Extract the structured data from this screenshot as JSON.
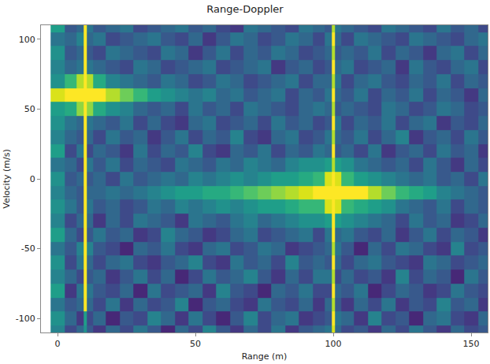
{
  "chart_data": {
    "type": "heatmap",
    "title": "Range-Doppler",
    "xlabel": "Range (m)",
    "ylabel": "Velocity (m/s)",
    "color": "Viridis",
    "grid": false,
    "xlim": [
      -6,
      156
    ],
    "ylim": [
      -110,
      110
    ],
    "xticks": [
      0,
      50,
      100,
      150
    ],
    "yticks": [
      -100,
      -50,
      0,
      50,
      100
    ],
    "zlim": [
      0,
      0.9
    ],
    "x": [
      0,
      5,
      9,
      10,
      11,
      15,
      20,
      25,
      30,
      35,
      40,
      45,
      50,
      55,
      60,
      65,
      70,
      75,
      80,
      85,
      90,
      95,
      99,
      100,
      101,
      105,
      110,
      115,
      120,
      125,
      130,
      135,
      140,
      145,
      150,
      155
    ],
    "y": [
      -110,
      -100,
      -90,
      -80,
      -70,
      -60,
      -50,
      -40,
      -30,
      -20,
      -10,
      0,
      10,
      20,
      30,
      40,
      50,
      60,
      70,
      80,
      90,
      100,
      110
    ],
    "z": [
      [
        0.4,
        0.2,
        0.3,
        0.45,
        0.25,
        0.15,
        0.3,
        0.2,
        0.35,
        0.25,
        0.1,
        0.3,
        0.2,
        0.4,
        0.25,
        0.15,
        0.3,
        0.2,
        0.35,
        0.15,
        0.25,
        0.3,
        0.35,
        0.85,
        0.3,
        0.2,
        0.25,
        0.15,
        0.3,
        0.2,
        0.35,
        0.25,
        0.15,
        0.3,
        0.2,
        0.25
      ],
      [
        0.45,
        0.3,
        0.15,
        0.5,
        0.2,
        0.3,
        0.1,
        0.25,
        0.2,
        0.4,
        0.3,
        0.15,
        0.35,
        0.2,
        0.1,
        0.25,
        0.4,
        0.2,
        0.3,
        0.35,
        0.15,
        0.2,
        0.25,
        0.9,
        0.35,
        0.3,
        0.15,
        0.4,
        0.2,
        0.25,
        0.1,
        0.3,
        0.35,
        0.2,
        0.15,
        0.3
      ],
      [
        0.35,
        0.25,
        0.3,
        0.9,
        0.3,
        0.2,
        0.35,
        0.15,
        0.3,
        0.2,
        0.25,
        0.4,
        0.1,
        0.25,
        0.3,
        0.2,
        0.15,
        0.35,
        0.25,
        0.2,
        0.3,
        0.15,
        0.3,
        0.8,
        0.25,
        0.15,
        0.3,
        0.2,
        0.35,
        0.15,
        0.25,
        0.2,
        0.4,
        0.25,
        0.3,
        0.15
      ],
      [
        0.5,
        0.15,
        0.35,
        0.95,
        0.35,
        0.25,
        0.2,
        0.3,
        0.1,
        0.35,
        0.2,
        0.25,
        0.3,
        0.15,
        0.4,
        0.25,
        0.2,
        0.1,
        0.3,
        0.25,
        0.35,
        0.2,
        0.2,
        0.9,
        0.3,
        0.25,
        0.35,
        0.1,
        0.2,
        0.3,
        0.25,
        0.15,
        0.2,
        0.35,
        0.25,
        0.2
      ],
      [
        0.4,
        0.3,
        0.2,
        0.95,
        0.25,
        0.3,
        0.15,
        0.25,
        0.35,
        0.2,
        0.3,
        0.1,
        0.2,
        0.35,
        0.25,
        0.3,
        0.4,
        0.25,
        0.15,
        0.3,
        0.2,
        0.35,
        0.35,
        0.8,
        0.2,
        0.3,
        0.2,
        0.25,
        0.15,
        0.4,
        0.2,
        0.3,
        0.25,
        0.1,
        0.35,
        0.25
      ],
      [
        0.45,
        0.2,
        0.35,
        0.95,
        0.3,
        0.2,
        0.3,
        0.35,
        0.2,
        0.15,
        0.25,
        0.3,
        0.4,
        0.2,
        0.15,
        0.35,
        0.25,
        0.3,
        0.2,
        0.4,
        0.25,
        0.3,
        0.25,
        0.9,
        0.3,
        0.2,
        0.3,
        0.35,
        0.25,
        0.2,
        0.15,
        0.35,
        0.3,
        0.2,
        0.25,
        0.3
      ],
      [
        0.35,
        0.25,
        0.4,
        0.95,
        0.4,
        0.25,
        0.2,
        0.1,
        0.3,
        0.25,
        0.35,
        0.2,
        0.15,
        0.3,
        0.35,
        0.2,
        0.25,
        0.35,
        0.3,
        0.15,
        0.2,
        0.25,
        0.3,
        0.8,
        0.35,
        0.25,
        0.1,
        0.3,
        0.2,
        0.35,
        0.3,
        0.2,
        0.15,
        0.4,
        0.2,
        0.25
      ],
      [
        0.5,
        0.3,
        0.2,
        0.95,
        0.25,
        0.35,
        0.25,
        0.3,
        0.15,
        0.2,
        0.4,
        0.3,
        0.25,
        0.15,
        0.2,
        0.3,
        0.35,
        0.2,
        0.25,
        0.3,
        0.35,
        0.2,
        0.35,
        0.9,
        0.3,
        0.35,
        0.25,
        0.2,
        0.3,
        0.15,
        0.25,
        0.35,
        0.2,
        0.3,
        0.25,
        0.15
      ],
      [
        0.4,
        0.2,
        0.3,
        0.95,
        0.3,
        0.15,
        0.3,
        0.2,
        0.35,
        0.3,
        0.25,
        0.15,
        0.35,
        0.3,
        0.25,
        0.35,
        0.4,
        0.3,
        0.35,
        0.4,
        0.45,
        0.45,
        0.5,
        0.9,
        0.5,
        0.45,
        0.4,
        0.35,
        0.3,
        0.2,
        0.35,
        0.25,
        0.3,
        0.15,
        0.2,
        0.3
      ],
      [
        0.45,
        0.35,
        0.25,
        0.95,
        0.35,
        0.25,
        0.3,
        0.2,
        0.25,
        0.35,
        0.3,
        0.4,
        0.35,
        0.4,
        0.45,
        0.4,
        0.45,
        0.5,
        0.5,
        0.55,
        0.6,
        0.6,
        0.85,
        1,
        0.85,
        0.6,
        0.55,
        0.5,
        0.45,
        0.35,
        0.3,
        0.25,
        0.35,
        0.2,
        0.3,
        0.25
      ],
      [
        0.4,
        0.3,
        0.25,
        0.95,
        0.3,
        0.3,
        0.35,
        0.3,
        0.35,
        0.4,
        0.45,
        0.5,
        0.5,
        0.55,
        0.55,
        0.6,
        0.65,
        0.7,
        0.75,
        0.8,
        0.85,
        0.95,
        1,
        1,
        1,
        1,
        0.9,
        0.8,
        0.7,
        0.6,
        0.55,
        0.5,
        0.4,
        0.35,
        0.3,
        0.25
      ],
      [
        0.45,
        0.25,
        0.3,
        0.95,
        0.25,
        0.3,
        0.2,
        0.35,
        0.25,
        0.3,
        0.35,
        0.3,
        0.4,
        0.35,
        0.4,
        0.45,
        0.4,
        0.45,
        0.5,
        0.5,
        0.55,
        0.6,
        0.85,
        1,
        0.85,
        0.6,
        0.5,
        0.45,
        0.4,
        0.35,
        0.3,
        0.35,
        0.25,
        0.3,
        0.2,
        0.35
      ],
      [
        0.35,
        0.3,
        0.2,
        0.95,
        0.35,
        0.25,
        0.35,
        0.2,
        0.3,
        0.25,
        0.2,
        0.35,
        0.3,
        0.25,
        0.35,
        0.3,
        0.4,
        0.35,
        0.3,
        0.4,
        0.45,
        0.45,
        0.5,
        0.8,
        0.5,
        0.45,
        0.35,
        0.3,
        0.25,
        0.3,
        0.2,
        0.35,
        0.25,
        0.15,
        0.3,
        0.2
      ],
      [
        0.5,
        0.2,
        0.35,
        0.95,
        0.2,
        0.3,
        0.25,
        0.15,
        0.35,
        0.2,
        0.3,
        0.25,
        0.4,
        0.2,
        0.15,
        0.3,
        0.25,
        0.35,
        0.2,
        0.3,
        0.25,
        0.35,
        0.3,
        0.9,
        0.25,
        0.3,
        0.2,
        0.35,
        0.15,
        0.25,
        0.3,
        0.2,
        0.35,
        0.25,
        0.3,
        0.15
      ],
      [
        0.4,
        0.3,
        0.25,
        0.95,
        0.3,
        0.2,
        0.35,
        0.25,
        0.3,
        0.15,
        0.25,
        0.35,
        0.2,
        0.3,
        0.25,
        0.4,
        0.2,
        0.15,
        0.3,
        0.35,
        0.2,
        0.25,
        0.35,
        0.8,
        0.3,
        0.25,
        0.35,
        0.2,
        0.3,
        0.4,
        0.15,
        0.25,
        0.3,
        0.2,
        0.35,
        0.25
      ],
      [
        0.45,
        0.35,
        0.3,
        0.95,
        0.35,
        0.3,
        0.25,
        0.35,
        0.2,
        0.3,
        0.2,
        0.15,
        0.3,
        0.35,
        0.2,
        0.25,
        0.3,
        0.2,
        0.35,
        0.25,
        0.3,
        0.2,
        0.25,
        0.9,
        0.35,
        0.2,
        0.3,
        0.25,
        0.35,
        0.2,
        0.3,
        0.35,
        0.15,
        0.25,
        0.2,
        0.3
      ],
      [
        0.5,
        0.55,
        0.75,
        1,
        0.75,
        0.55,
        0.45,
        0.4,
        0.3,
        0.25,
        0.3,
        0.2,
        0.35,
        0.25,
        0.3,
        0.2,
        0.35,
        0.3,
        0.25,
        0.2,
        0.3,
        0.35,
        0.3,
        0.8,
        0.25,
        0.3,
        0.25,
        0.2,
        0.35,
        0.3,
        0.2,
        0.25,
        0.35,
        0.3,
        0.2,
        0.25
      ],
      [
        0.85,
        0.95,
        1,
        1,
        1,
        0.95,
        0.8,
        0.7,
        0.6,
        0.5,
        0.45,
        0.4,
        0.35,
        0.4,
        0.3,
        0.35,
        0.25,
        0.3,
        0.35,
        0.2,
        0.3,
        0.25,
        0.35,
        0.9,
        0.3,
        0.25,
        0.35,
        0.2,
        0.3,
        0.25,
        0.35,
        0.2,
        0.3,
        0.25,
        0.15,
        0.3
      ],
      [
        0.45,
        0.6,
        0.8,
        1,
        0.8,
        0.55,
        0.4,
        0.35,
        0.3,
        0.25,
        0.35,
        0.3,
        0.2,
        0.25,
        0.35,
        0.3,
        0.2,
        0.25,
        0.3,
        0.35,
        0.2,
        0.3,
        0.3,
        0.8,
        0.35,
        0.2,
        0.3,
        0.35,
        0.25,
        0.2,
        0.3,
        0.25,
        0.35,
        0.2,
        0.3,
        0.25
      ],
      [
        0.4,
        0.3,
        0.35,
        0.95,
        0.35,
        0.3,
        0.25,
        0.2,
        0.35,
        0.3,
        0.2,
        0.25,
        0.3,
        0.35,
        0.2,
        0.25,
        0.3,
        0.35,
        0.15,
        0.25,
        0.3,
        0.2,
        0.25,
        0.9,
        0.3,
        0.35,
        0.2,
        0.25,
        0.3,
        0.15,
        0.35,
        0.25,
        0.2,
        0.3,
        0.35,
        0.2
      ],
      [
        0.45,
        0.25,
        0.3,
        0.95,
        0.25,
        0.2,
        0.35,
        0.3,
        0.25,
        0.2,
        0.35,
        0.3,
        0.15,
        0.25,
        0.35,
        0.2,
        0.3,
        0.25,
        0.35,
        0.3,
        0.2,
        0.25,
        0.3,
        0.8,
        0.25,
        0.3,
        0.25,
        0.35,
        0.2,
        0.3,
        0.25,
        0.15,
        0.3,
        0.35,
        0.2,
        0.3
      ],
      [
        0.35,
        0.3,
        0.4,
        0.95,
        0.3,
        0.35,
        0.2,
        0.25,
        0.3,
        0.35,
        0.25,
        0.2,
        0.3,
        0.15,
        0.25,
        0.35,
        0.3,
        0.2,
        0.25,
        0.35,
        0.3,
        0.2,
        0.35,
        0.9,
        0.3,
        0.2,
        0.35,
        0.3,
        0.25,
        0.2,
        0.35,
        0.3,
        0.25,
        0.2,
        0.3,
        0.35
      ],
      [
        0.5,
        0.25,
        0.3,
        0.95,
        0.35,
        0.25,
        0.3,
        0.35,
        0.2,
        0.25,
        0.3,
        0.35,
        0.25,
        0.3,
        0.2,
        0.15,
        0.35,
        0.3,
        0.25,
        0.2,
        0.35,
        0.3,
        0.25,
        0.8,
        0.35,
        0.3,
        0.25,
        0.2,
        0.35,
        0.3,
        0.25,
        0.2,
        0.35,
        0.25,
        0.3,
        0.2
      ]
    ]
  }
}
